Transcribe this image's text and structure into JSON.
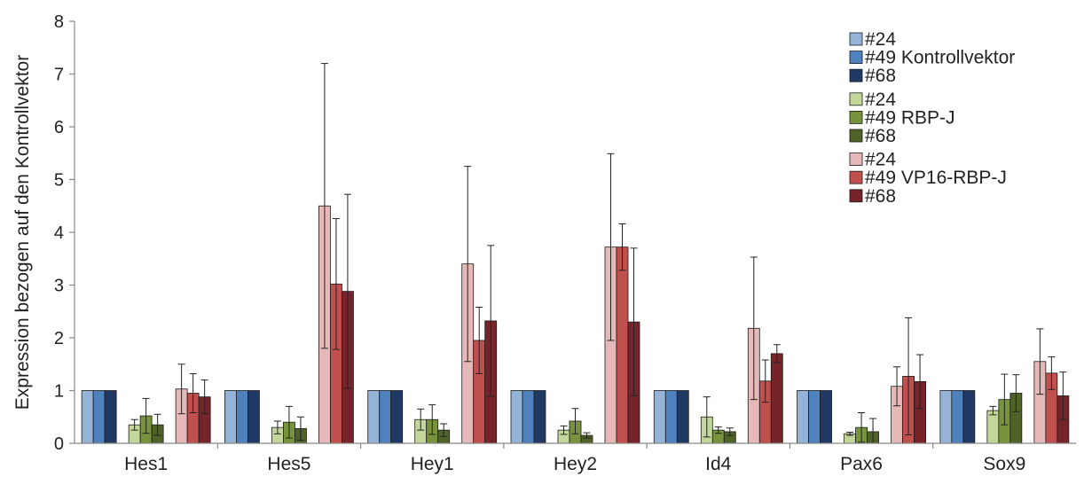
{
  "chart_data": {
    "type": "bar",
    "title": "",
    "xlabel": "",
    "ylabel": "Expression bezogen auf den Kontrollvektor",
    "ylim": [
      0,
      8
    ],
    "yticks": [
      "0",
      "1",
      "2",
      "3",
      "4",
      "5",
      "6",
      "7",
      "8"
    ],
    "grid": false,
    "legend_position": "top-right",
    "error_bars": true,
    "categories": [
      "Hes1",
      "Hes5",
      "Hey1",
      "Hey2",
      "Id4",
      "Pax6",
      "Sox9"
    ],
    "groups": [
      {
        "name": "Kontrollvektor",
        "series": [
          0,
          1,
          2
        ]
      },
      {
        "name": "RBP-J",
        "series": [
          3,
          4,
          5
        ]
      },
      {
        "name": "VP16-RBP-J",
        "series": [
          6,
          7,
          8
        ]
      }
    ],
    "series": [
      {
        "name": "#24",
        "group": "Kontrollvektor",
        "color": "#95b3d7",
        "values": [
          1,
          1,
          1,
          1,
          1,
          1,
          1
        ],
        "errors": [
          0,
          0,
          0,
          0,
          0,
          0,
          0
        ]
      },
      {
        "name": "#49",
        "group": "Kontrollvektor",
        "color": "#4f81bd",
        "values": [
          1,
          1,
          1,
          1,
          1,
          1,
          1
        ],
        "errors": [
          0,
          0,
          0,
          0,
          0,
          0,
          0
        ]
      },
      {
        "name": "#68",
        "group": "Kontrollvektor",
        "color": "#1f3864",
        "values": [
          1,
          1,
          1,
          1,
          1,
          1,
          1
        ],
        "errors": [
          0,
          0,
          0,
          0,
          0,
          0,
          0
        ]
      },
      {
        "name": "#24",
        "group": "RBP-J",
        "color": "#c4d79b",
        "values": [
          0.35,
          0.3,
          0.45,
          0.25,
          0.5,
          0.18,
          0.62
        ],
        "errors": [
          0.1,
          0.12,
          0.2,
          0.08,
          0.38,
          0.03,
          0.08
        ]
      },
      {
        "name": "#49",
        "group": "RBP-J",
        "color": "#77933c",
        "values": [
          0.52,
          0.4,
          0.45,
          0.42,
          0.25,
          0.3,
          0.83
        ],
        "errors": [
          0.33,
          0.3,
          0.28,
          0.24,
          0.06,
          0.28,
          0.48
        ]
      },
      {
        "name": "#68",
        "group": "RBP-J",
        "color": "#4f6228",
        "values": [
          0.35,
          0.28,
          0.25,
          0.15,
          0.22,
          0.22,
          0.95
        ],
        "errors": [
          0.2,
          0.22,
          0.12,
          0.05,
          0.07,
          0.25,
          0.35
        ]
      },
      {
        "name": "#24",
        "group": "VP16-RBP-J",
        "color": "#e6b9b8",
        "values": [
          1.03,
          4.5,
          3.4,
          3.72,
          2.18,
          1.08,
          1.55
        ],
        "errors": [
          0.47,
          2.7,
          1.85,
          1.77,
          1.35,
          0.37,
          0.62
        ]
      },
      {
        "name": "#49",
        "group": "VP16-RBP-J",
        "color": "#c0504d",
        "values": [
          0.95,
          3.02,
          1.95,
          3.72,
          1.18,
          1.27,
          1.33
        ],
        "errors": [
          0.37,
          1.24,
          0.63,
          0.44,
          0.4,
          1.11,
          0.31
        ]
      },
      {
        "name": "#68",
        "group": "VP16-RBP-J",
        "color": "#76232a",
        "values": [
          0.88,
          2.88,
          2.32,
          2.3,
          1.7,
          1.17,
          0.9
        ],
        "errors": [
          0.32,
          1.84,
          1.43,
          1.4,
          0.17,
          0.51,
          0.45
        ]
      }
    ],
    "legend": [
      {
        "label": "#24",
        "color": "#95b3d7"
      },
      {
        "label": "#49 Kontrollvektor",
        "color": "#4f81bd"
      },
      {
        "label": "#68",
        "color": "#1f3864"
      },
      {
        "label": "#24",
        "color": "#c4d79b"
      },
      {
        "label": "#49 RBP-J",
        "color": "#77933c"
      },
      {
        "label": "#68",
        "color": "#4f6228"
      },
      {
        "label": "#24",
        "color": "#e6b9b8"
      },
      {
        "label": "#49 VP16-RBP-J",
        "color": "#c0504d"
      },
      {
        "label": "#68",
        "color": "#76232a"
      }
    ]
  }
}
